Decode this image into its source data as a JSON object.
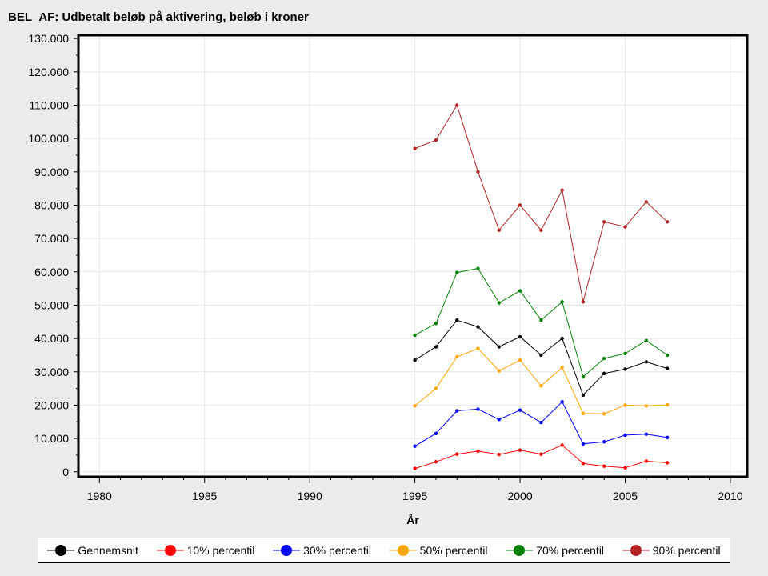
{
  "chart_data": {
    "type": "line",
    "title": "BEL_AF: Udbetalt beløb på aktivering, beløb i kroner",
    "xlabel": "År",
    "ylabel": "",
    "xlim": [
      1979,
      2010.8
    ],
    "ylim": [
      -1500,
      131000
    ],
    "xticks": [
      1980,
      1985,
      1990,
      1995,
      2000,
      2005,
      2010
    ],
    "xtick_labels": [
      "1980",
      "1985",
      "1990",
      "1995",
      "2000",
      "2005",
      "2010"
    ],
    "yticks": [
      0,
      10000,
      20000,
      30000,
      40000,
      50000,
      60000,
      70000,
      80000,
      90000,
      100000,
      110000,
      120000,
      130000
    ],
    "ytick_labels": [
      "0",
      "10.000",
      "20.000",
      "30.000",
      "40.000",
      "50.000",
      "60.000",
      "70.000",
      "80.000",
      "90.000",
      "100.000",
      "110.000",
      "120.000",
      "130.000"
    ],
    "grid": true,
    "legend_position": "bottom",
    "x": [
      1995,
      1996,
      1997,
      1998,
      1999,
      2000,
      2001,
      2002,
      2003,
      2004,
      2005,
      2006,
      2007
    ],
    "series": [
      {
        "name": "Gennemsnit",
        "color": "#000000",
        "values": [
          33500,
          37500,
          45500,
          43500,
          37500,
          40500,
          35000,
          40000,
          23000,
          29500,
          30800,
          33000,
          31000
        ]
      },
      {
        "name": "10% percentil",
        "color": "#ff0000",
        "values": [
          1000,
          3000,
          5300,
          6200,
          5200,
          6500,
          5300,
          8000,
          2500,
          1700,
          1200,
          3200,
          2700
        ]
      },
      {
        "name": "30% percentil",
        "color": "#0000ff",
        "values": [
          7700,
          11500,
          18300,
          18800,
          15700,
          18500,
          14800,
          21000,
          8400,
          9000,
          11000,
          11300,
          10300
        ]
      },
      {
        "name": "50% percentil",
        "color": "#ffa500",
        "values": [
          19800,
          25000,
          34500,
          37000,
          30300,
          33500,
          25800,
          31300,
          17500,
          17400,
          20000,
          19800,
          20100
        ]
      },
      {
        "name": "70% percentil",
        "color": "#008000",
        "values": [
          41000,
          44500,
          59800,
          61000,
          50700,
          54300,
          45500,
          51000,
          28500,
          34000,
          35500,
          39400,
          35000
        ]
      },
      {
        "name": "90% percentil",
        "color": "#b22222",
        "values": [
          97000,
          99500,
          110000,
          90000,
          72500,
          80000,
          72500,
          84500,
          51000,
          75000,
          73500,
          81000,
          75000
        ]
      }
    ]
  }
}
